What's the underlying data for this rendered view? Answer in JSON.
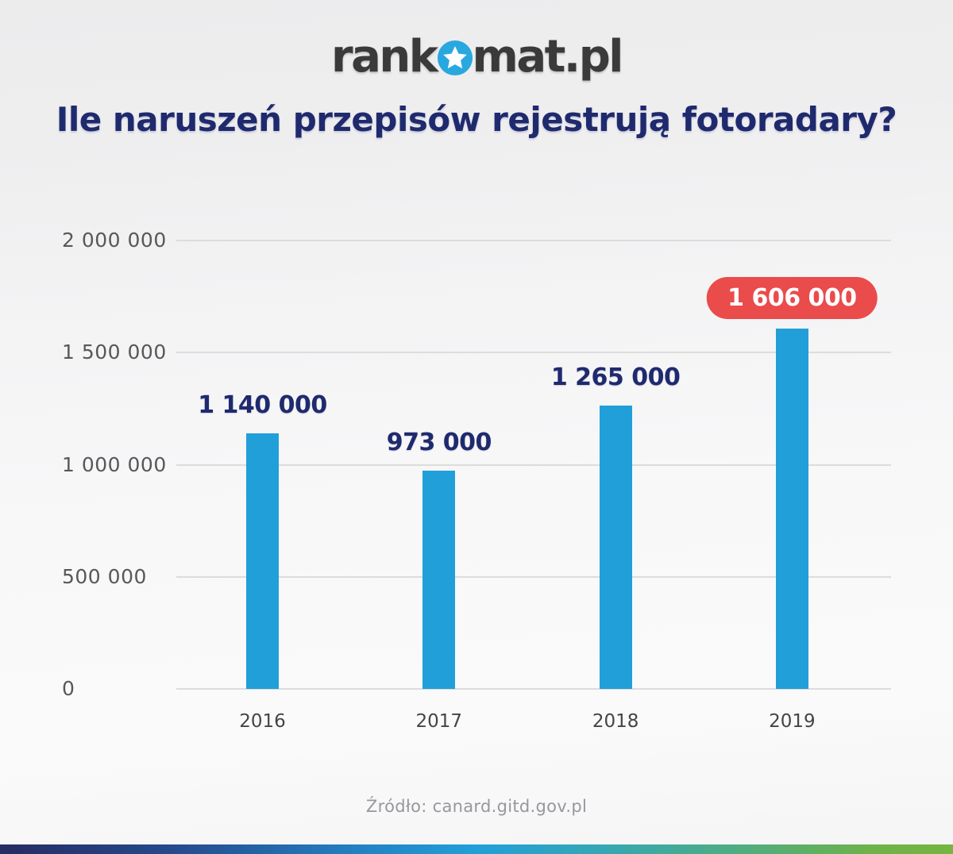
{
  "logo": {
    "prefix": "rank",
    "suffix": "mat.pl",
    "star_icon": "star-in-blue-circle"
  },
  "header": {
    "title": "Ile naruszeń przepisów rejestrują fotoradary?"
  },
  "footer": {
    "source": "Źródło: canard.gitd.gov.pl"
  },
  "colors": {
    "bar": "#219FD9",
    "navy": "#1F2A6E",
    "badge_red": "#EA4B4B",
    "badge_text": "#FFFFFF",
    "gridline": "#DCDCDD",
    "y_tick": "#58585A",
    "x_tick": "#454545",
    "source_text": "#97979D",
    "logo_text": "#3A3A3A",
    "logo_star_bg": "#29A8E0",
    "logo_star": "#FFFFFF",
    "footer_gradient_left": "#262B63",
    "footer_gradient_mid": "#219FD9",
    "footer_gradient_right": "#76B541"
  },
  "chart_data": {
    "type": "bar",
    "title": "Ile naruszeń przepisów rejestrują fotoradary?",
    "categories": [
      "2016",
      "2017",
      "2018",
      "2019"
    ],
    "values": [
      1140000,
      973000,
      1265000,
      1606000
    ],
    "value_labels": [
      "1 140 000",
      "973 000",
      "1 265 000",
      "1 606 000"
    ],
    "highlight_index": 3,
    "highlight_style": "red-pill-badge",
    "ylim": [
      0,
      2000000
    ],
    "y_ticks": [
      0,
      500000,
      1000000,
      1500000,
      2000000
    ],
    "y_tick_labels": [
      "0",
      "500 000",
      "1 000 000",
      "1 500 000",
      "2 000 000"
    ],
    "grid": true,
    "legend": null,
    "xlabel": "",
    "ylabel": "",
    "source": "Źródło: canard.gitd.gov.pl"
  }
}
